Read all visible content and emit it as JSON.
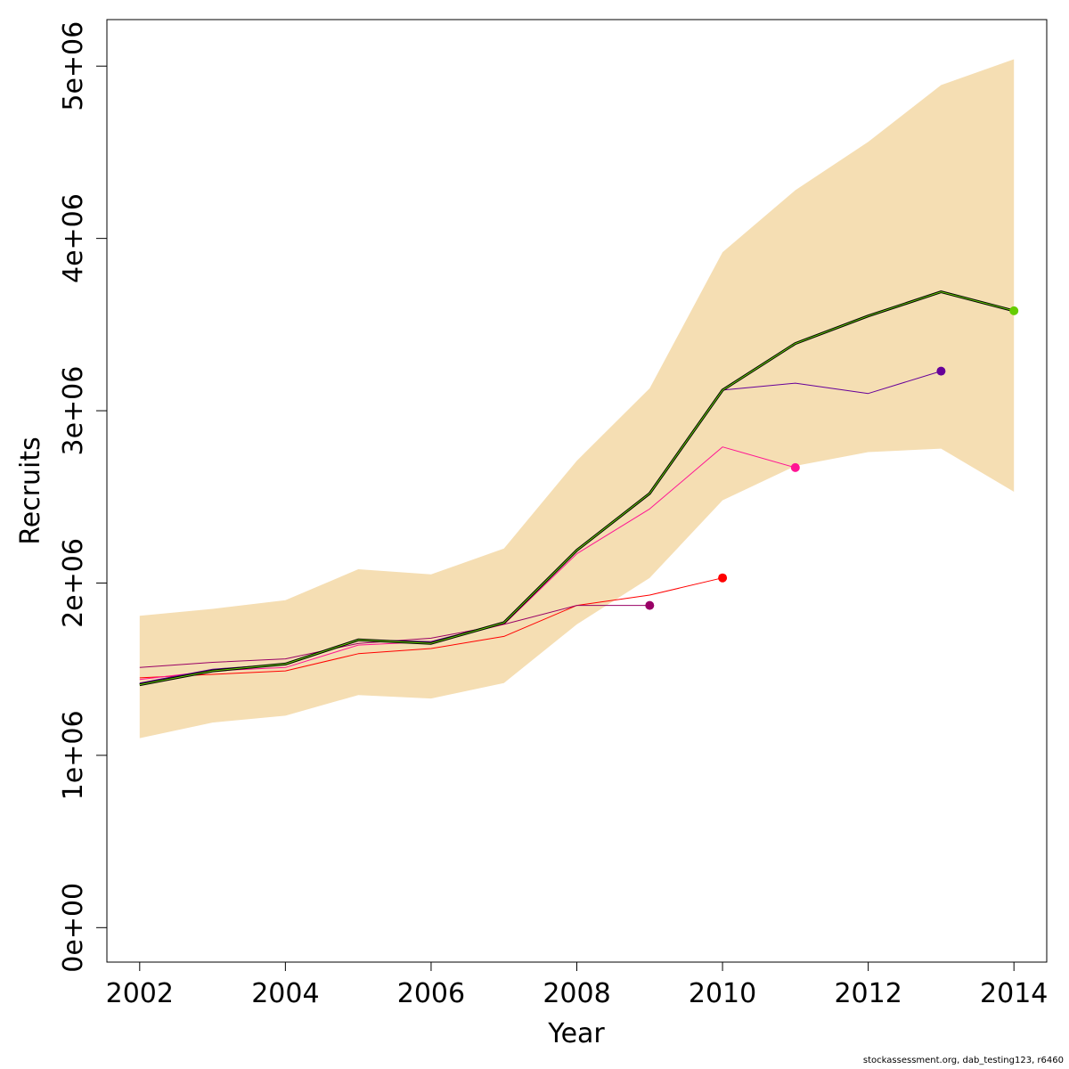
{
  "chart_data": {
    "type": "line",
    "title": "",
    "xlabel": "Year",
    "ylabel": "Recruits",
    "xlim": [
      2001.55,
      2014.45
    ],
    "ylim": [
      -200000,
      5270000
    ],
    "x_ticks": [
      2002,
      2004,
      2006,
      2008,
      2010,
      2012,
      2014
    ],
    "x_tick_labels": [
      "2002",
      "2004",
      "2006",
      "2008",
      "2010",
      "2012",
      "2014"
    ],
    "y_ticks": [
      0,
      1000000,
      2000000,
      3000000,
      4000000,
      5000000
    ],
    "y_tick_labels": [
      "0e+00",
      "1e+06",
      "2e+06",
      "3e+06",
      "4e+06",
      "5e+06"
    ],
    "grid": false,
    "band": {
      "color": "#f5deb3",
      "x": [
        2002,
        2003,
        2004,
        2005,
        2006,
        2007,
        2008,
        2009,
        2010,
        2011,
        2012,
        2013,
        2014
      ],
      "lower": [
        1100000,
        1190000,
        1230000,
        1350000,
        1330000,
        1420000,
        1760000,
        2030000,
        2480000,
        2680000,
        2760000,
        2780000,
        2530000
      ],
      "upper": [
        1810000,
        1850000,
        1900000,
        2080000,
        2050000,
        2200000,
        2710000,
        3130000,
        3920000,
        4280000,
        4560000,
        4890000,
        5040000
      ]
    },
    "series": [
      {
        "color": "#ff0000",
        "width": 1,
        "x": [
          2002,
          2003,
          2004,
          2005,
          2006,
          2007,
          2008,
          2009,
          2010
        ],
        "values": [
          1450000,
          1470000,
          1490000,
          1590000,
          1620000,
          1690000,
          1870000,
          1930000,
          2030000
        ],
        "endpoint": true
      },
      {
        "color": "#990066",
        "width": 1,
        "x": [
          2002,
          2003,
          2004,
          2005,
          2006,
          2007,
          2008,
          2009
        ],
        "values": [
          1510000,
          1540000,
          1560000,
          1650000,
          1680000,
          1760000,
          1870000,
          1870000
        ],
        "endpoint": true
      },
      {
        "color": "#ff1493",
        "width": 1,
        "x": [
          2002,
          2003,
          2004,
          2005,
          2006,
          2007,
          2008,
          2009,
          2010,
          2011
        ],
        "values": [
          1440000,
          1490000,
          1510000,
          1640000,
          1660000,
          1760000,
          2170000,
          2430000,
          2790000,
          2670000
        ],
        "endpoint": true
      },
      {
        "color": "#660099",
        "width": 1,
        "x": [
          2002,
          2003,
          2004,
          2005,
          2006,
          2007,
          2008,
          2009,
          2010,
          2011,
          2012,
          2013
        ],
        "values": [
          1420000,
          1500000,
          1530000,
          1670000,
          1660000,
          1770000,
          2190000,
          2520000,
          3120000,
          3160000,
          3100000,
          3230000
        ],
        "endpoint": true
      },
      {
        "color": "#000000",
        "width": 3,
        "x": [
          2002,
          2003,
          2004,
          2005,
          2006,
          2007,
          2008,
          2009,
          2010,
          2011,
          2012,
          2013,
          2014
        ],
        "values": [
          1410000,
          1490000,
          1530000,
          1670000,
          1650000,
          1770000,
          2190000,
          2520000,
          3120000,
          3390000,
          3550000,
          3690000,
          3580000
        ],
        "endpoint": false
      },
      {
        "color": "#66cc00",
        "width": 1,
        "x": [
          2002,
          2003,
          2004,
          2005,
          2006,
          2007,
          2008,
          2009,
          2010,
          2011,
          2012,
          2013,
          2014
        ],
        "values": [
          1410000,
          1490000,
          1530000,
          1670000,
          1650000,
          1770000,
          2190000,
          2520000,
          3120000,
          3390000,
          3550000,
          3690000,
          3580000
        ],
        "endpoint": true
      }
    ]
  },
  "footer": "stockassessment.org, dab_testing123, r6460"
}
